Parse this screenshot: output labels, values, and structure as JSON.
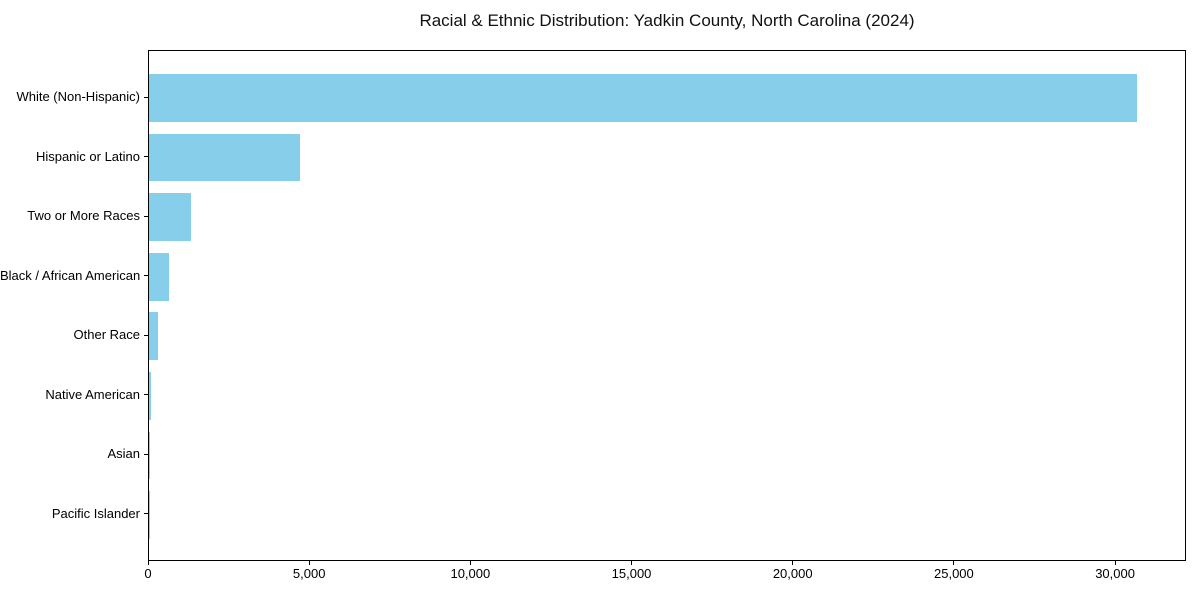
{
  "figure": {
    "background": "#ffffff"
  },
  "chart_data": {
    "type": "bar",
    "orientation": "horizontal",
    "title": "Racial & Ethnic Distribution: Yadkin County, North Carolina (2024)",
    "categories": [
      "White (Non-Hispanic)",
      "Hispanic or Latino",
      "Two or More Races",
      "Black / African American",
      "Other Race",
      "Native American",
      "Asian",
      "Pacific Islander"
    ],
    "values": [
      30660,
      4680,
      1290,
      620,
      270,
      60,
      30,
      10
    ],
    "bar_color": "#87CEEB",
    "axis_color": "#000000",
    "text_color": "#000000",
    "xlabel": "",
    "ylabel": "",
    "xlim": [
      0,
      32200
    ],
    "xticks": [
      0,
      5000,
      10000,
      15000,
      20000,
      25000,
      30000
    ],
    "xtick_labels": [
      "0",
      "5,000",
      "10,000",
      "15,000",
      "20,000",
      "25,000",
      "30,000"
    ],
    "grid": false,
    "legend_position": "none"
  }
}
